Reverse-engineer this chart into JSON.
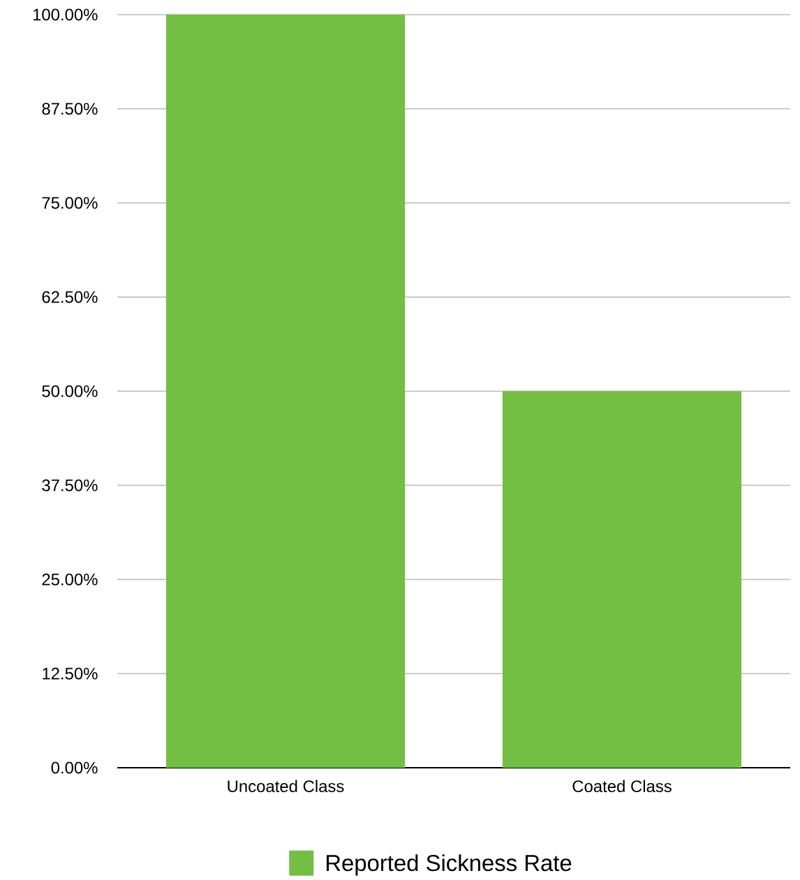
{
  "chart_data": {
    "type": "bar",
    "categories": [
      "Uncoated Class",
      "Coated Class"
    ],
    "series": [
      {
        "name": "Reported Sickness Rate",
        "color": "#72bf44",
        "values": [
          100,
          50
        ]
      }
    ],
    "ylim": [
      0,
      100
    ],
    "yticks": [
      {
        "value": 0,
        "label": "0.00%"
      },
      {
        "value": 12.5,
        "label": "12.50%"
      },
      {
        "value": 25,
        "label": "25.00%"
      },
      {
        "value": 37.5,
        "label": "37.50%"
      },
      {
        "value": 50,
        "label": "50.00%"
      },
      {
        "value": 62.5,
        "label": "62.50%"
      },
      {
        "value": 75,
        "label": "75.00%"
      },
      {
        "value": 87.5,
        "label": "87.50%"
      },
      {
        "value": 100,
        "label": "100.00%"
      }
    ],
    "grid": "y",
    "legend": "bottom"
  }
}
